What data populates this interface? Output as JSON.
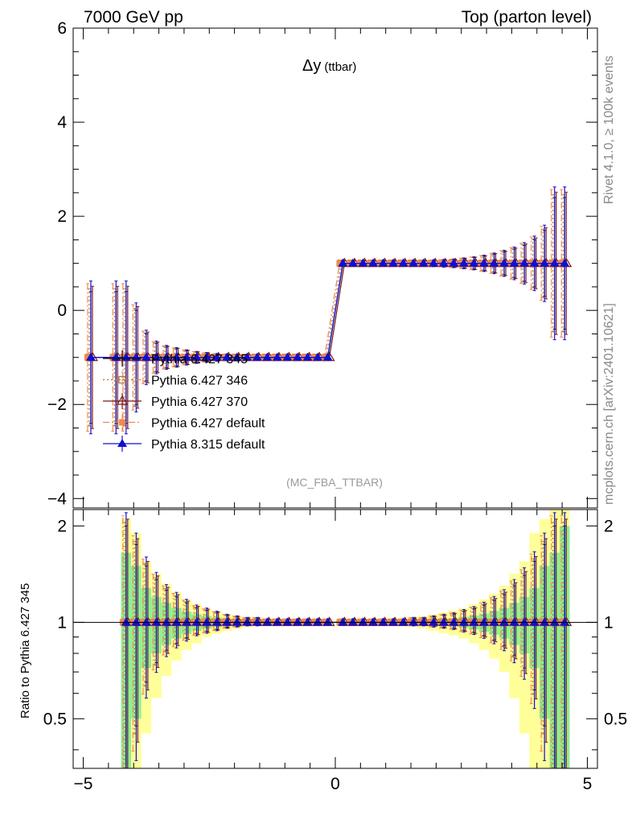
{
  "header": {
    "left_title": "7000 GeV pp",
    "right_title": "Top (parton level)"
  },
  "side_labels": {
    "rivet": "Rivet 4.1.0, ≥ 100k events",
    "mcplots": "mcplots.cern.ch [arXiv:2401.10621]"
  },
  "chart_data": [
    {
      "panel": "main",
      "type": "scatter",
      "title_symbol": "Δy",
      "title_sub": "(ttbar)",
      "analysis_tag": "(MC_FBA_TTBAR)",
      "xlim": [
        -5.2,
        5.2
      ],
      "ylim": [
        -4.2,
        6.0
      ],
      "yticks": [
        -4,
        -2,
        0,
        2,
        4,
        6
      ],
      "ytick_labels": [
        "−4",
        "−2",
        "0",
        "2",
        "4",
        "6"
      ],
      "xticks": [
        -5,
        0,
        5
      ],
      "xtick_labels": [
        "−5",
        "0",
        "5"
      ],
      "x": [
        -4.85,
        -4.35,
        -4.15,
        -3.95,
        -3.75,
        -3.55,
        -3.35,
        -3.15,
        -2.95,
        -2.75,
        -2.55,
        -2.35,
        -2.15,
        -1.95,
        -1.75,
        -1.55,
        -1.35,
        -1.15,
        -0.95,
        -0.75,
        -0.55,
        -0.35,
        -0.15,
        0.15,
        0.35,
        0.55,
        0.75,
        0.95,
        1.15,
        1.35,
        1.55,
        1.75,
        1.95,
        2.15,
        2.35,
        2.55,
        2.75,
        2.95,
        3.15,
        3.35,
        3.55,
        3.75,
        3.95,
        4.15,
        4.35,
        4.55
      ],
      "y": [
        -1,
        -1,
        -1,
        -1,
        -1,
        -1,
        -1,
        -1,
        -1,
        -1,
        -1,
        -1,
        -1,
        -1,
        -1,
        -1,
        -1,
        -1,
        -1,
        -1,
        -1,
        -1,
        -1,
        1,
        1,
        1,
        1,
        1,
        1,
        1,
        1,
        1,
        1,
        1,
        1,
        1,
        1,
        1,
        1,
        1,
        1,
        1,
        1,
        1,
        1,
        1
      ],
      "yerr": [
        1.4,
        1.4,
        1.4,
        1.0,
        0.5,
        0.3,
        0.22,
        0.18,
        0.14,
        0.11,
        0.09,
        0.07,
        0.06,
        0.05,
        0.05,
        0.05,
        0.05,
        0.05,
        0.05,
        0.05,
        0.05,
        0.05,
        0.05,
        0.05,
        0.05,
        0.05,
        0.05,
        0.05,
        0.05,
        0.05,
        0.05,
        0.05,
        0.06,
        0.07,
        0.08,
        0.1,
        0.12,
        0.15,
        0.19,
        0.24,
        0.3,
        0.38,
        0.5,
        0.7,
        1.4,
        1.4
      ],
      "legend_position": "left-middle",
      "series": [
        {
          "name": "Pythia 6.427 345",
          "color": "#111111",
          "marker": "none",
          "dash": ""
        },
        {
          "name": "Pythia 6.427 346",
          "color": "#b0743a",
          "marker": "open-square",
          "dash": "2,3"
        },
        {
          "name": "Pythia 6.427 370",
          "color": "#7a1a1a",
          "marker": "open-triangle",
          "dash": ""
        },
        {
          "name": "Pythia 6.427 default",
          "color": "#f08a4b",
          "marker": "filled-square",
          "dash": "8,3,2,3"
        },
        {
          "name": "Pythia 8.315 default",
          "color": "#1010d0",
          "marker": "filled-triangle",
          "dash": ""
        }
      ]
    },
    {
      "panel": "ratio",
      "type": "scatter",
      "ylabel": "Ratio to Pythia 6.427 345",
      "reference": "Pythia 6.427 345",
      "xlim": [
        -5.2,
        5.2
      ],
      "ylim": [
        0.35,
        2.25
      ],
      "yticks": [
        0.5,
        1,
        2
      ],
      "ytick_labels": [
        "0.5",
        "1",
        "2"
      ],
      "xticks": [
        -5,
        0,
        5
      ],
      "xtick_labels": [
        "−5",
        "0",
        "5"
      ],
      "x": [
        -4.15,
        -3.95,
        -3.75,
        -3.55,
        -3.35,
        -3.15,
        -2.95,
        -2.75,
        -2.55,
        -2.35,
        -2.15,
        -1.95,
        -1.75,
        -1.55,
        -1.35,
        -1.15,
        -0.95,
        -0.75,
        -0.55,
        -0.35,
        -0.15,
        0.15,
        0.35,
        0.55,
        0.75,
        0.95,
        1.15,
        1.35,
        1.55,
        1.75,
        1.95,
        2.15,
        2.35,
        2.55,
        2.75,
        2.95,
        3.15,
        3.35,
        3.55,
        3.75,
        3.95,
        4.15,
        4.35,
        4.55
      ],
      "ratio_err": [
        1.0,
        0.75,
        0.5,
        0.36,
        0.26,
        0.2,
        0.15,
        0.11,
        0.09,
        0.07,
        0.05,
        0.04,
        0.03,
        0.03,
        0.02,
        0.02,
        0.02,
        0.02,
        0.02,
        0.02,
        0.02,
        0.02,
        0.02,
        0.02,
        0.02,
        0.02,
        0.02,
        0.02,
        0.03,
        0.03,
        0.04,
        0.05,
        0.06,
        0.08,
        0.1,
        0.13,
        0.17,
        0.22,
        0.3,
        0.4,
        0.55,
        0.75,
        1.0,
        1.0
      ],
      "band_green": [
        0.65,
        0.5,
        0.28,
        0.2,
        0.15,
        0.11,
        0.08,
        0.06,
        0.045,
        0.035,
        0.025,
        0.02,
        0.015,
        0.012,
        0.01,
        0.01,
        0.01,
        0.01,
        0.01,
        0.01,
        0.01,
        0.01,
        0.01,
        0.01,
        0.01,
        0.01,
        0.01,
        0.01,
        0.012,
        0.015,
        0.02,
        0.025,
        0.03,
        0.04,
        0.05,
        0.065,
        0.085,
        0.11,
        0.15,
        0.2,
        0.28,
        0.5,
        0.65,
        1.0
      ],
      "band_yellow": [
        1.1,
        0.9,
        0.55,
        0.42,
        0.32,
        0.24,
        0.18,
        0.14,
        0.1,
        0.08,
        0.06,
        0.045,
        0.035,
        0.028,
        0.022,
        0.02,
        0.02,
        0.02,
        0.02,
        0.02,
        0.02,
        0.02,
        0.02,
        0.02,
        0.02,
        0.02,
        0.022,
        0.028,
        0.035,
        0.045,
        0.06,
        0.075,
        0.09,
        0.11,
        0.14,
        0.18,
        0.23,
        0.3,
        0.42,
        0.55,
        0.9,
        1.1,
        1.3,
        1.3
      ],
      "band_colors": {
        "green": "#90ee90",
        "yellow": "#ffff99"
      }
    }
  ]
}
